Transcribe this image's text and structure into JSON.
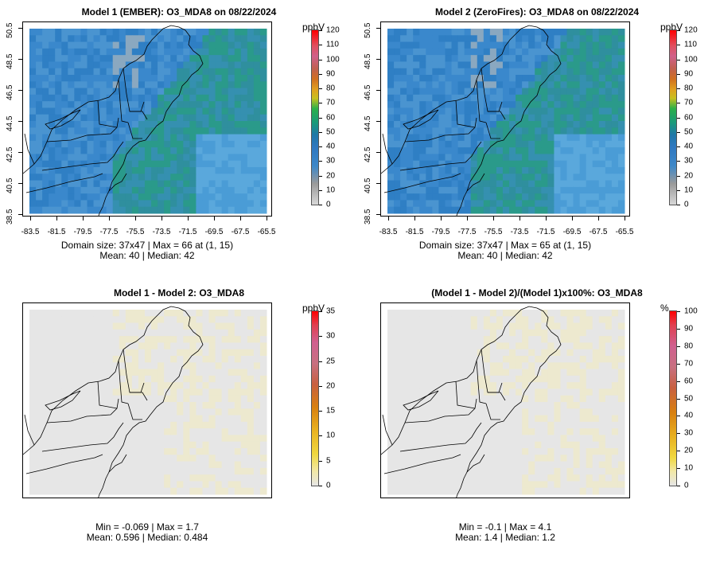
{
  "panels": [
    {
      "title": "Model 1 (EMBER): O3_MDA8 on 08/22/2024",
      "kind": "conc",
      "unit": "ppbV",
      "scale_ticks": [
        "0",
        "10",
        "20",
        "30",
        "40",
        "50",
        "60",
        "70",
        "80",
        "90",
        "100",
        "110",
        "120"
      ],
      "x_ticks": [
        "-83.5",
        "-81.5",
        "-79.5",
        "-77.5",
        "-75.5",
        "-73.5",
        "-71.5",
        "-69.5",
        "-67.5",
        "-65.5"
      ],
      "y_ticks": [
        "38.5",
        "40.5",
        "42.5",
        "44.5",
        "46.5",
        "48.5",
        "50.5"
      ],
      "stats_line1": "Domain size: 37x47 | Max = 66 at (1, 15)",
      "stats_line2": "Mean: 40 |  Median: 42"
    },
    {
      "title": "Model 2 (ZeroFires): O3_MDA8 on 08/22/2024",
      "kind": "conc",
      "unit": "ppbV",
      "scale_ticks": [
        "0",
        "10",
        "20",
        "30",
        "40",
        "50",
        "60",
        "70",
        "80",
        "90",
        "100",
        "110",
        "120"
      ],
      "x_ticks": [
        "-83.5",
        "-81.5",
        "-79.5",
        "-77.5",
        "-75.5",
        "-73.5",
        "-71.5",
        "-69.5",
        "-67.5",
        "-65.5"
      ],
      "y_ticks": [
        "38.5",
        "40.5",
        "42.5",
        "44.5",
        "46.5",
        "48.5",
        "50.5"
      ],
      "stats_line1": "Domain size: 37x47 | Max = 65 at (1, 15)",
      "stats_line2": "Mean: 40 |  Median: 42"
    },
    {
      "title": "Model 1 - Model 2: O3_MDA8",
      "kind": "diff",
      "unit": "ppbV",
      "scale_ticks": [
        "0",
        "5",
        "10",
        "15",
        "20",
        "25",
        "30",
        "35"
      ],
      "stats_line1": "Min = -0.069 | Max = 1.7",
      "stats_line2": "Mean: 0.596 |  Median: 0.484"
    },
    {
      "title": "(Model 1 - Model 2)/(Model 1)x100%: O3_MDA8",
      "kind": "pct",
      "unit": "%",
      "scale_ticks": [
        "0",
        "10",
        "20",
        "30",
        "40",
        "50",
        "60",
        "70",
        "80",
        "90",
        "100"
      ],
      "stats_line1": "Min = -0.1 | Max = 4.1",
      "stats_line2": "Mean: 1.4 |  Median: 1.2"
    }
  ]
}
